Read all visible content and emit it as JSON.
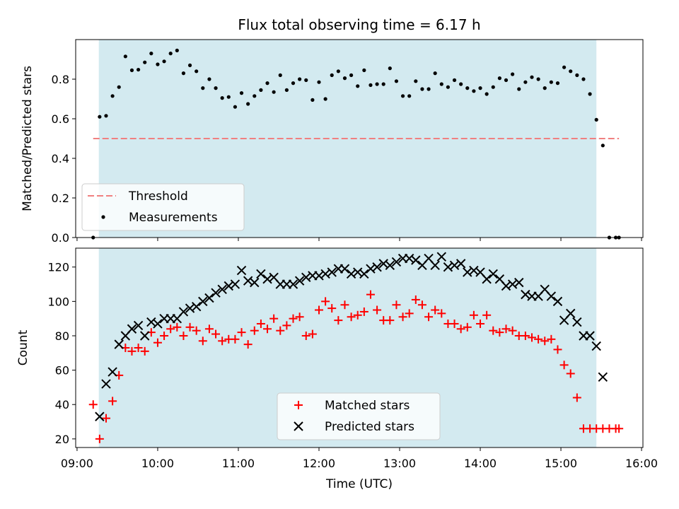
{
  "figure": {
    "title": "Flux total observing time = 6.17 h",
    "xlabel": "Time (UTC)",
    "x_tick_labels": [
      "09:00",
      "10:00",
      "11:00",
      "12:00",
      "13:00",
      "14:00",
      "15:00",
      "16:00"
    ],
    "x_ticks_hours": [
      9,
      10,
      11,
      12,
      13,
      14,
      15,
      16
    ],
    "xlim_hours": [
      8.983,
      16.017
    ],
    "observing_window_hours": [
      9.27,
      15.44
    ],
    "window_color": "#d3eaf0",
    "threshold_color": "#f08080",
    "matched_color": "#ff0000",
    "predicted_color": "#000000"
  },
  "chart_data": [
    {
      "type": "scatter",
      "ylabel": "Matched/Predicted stars",
      "ylim": [
        0,
        1.0
      ],
      "y_ticks": [
        0.0,
        0.2,
        0.4,
        0.6,
        0.8
      ],
      "y_tick_labels": [
        "0.0",
        "0.2",
        "0.4",
        "0.6",
        "0.8"
      ],
      "legend_position": "lower-left",
      "threshold": {
        "name": "Threshold",
        "y": 0.5,
        "x_range": [
          9.2,
          15.72
        ]
      },
      "series": [
        {
          "name": "Measurements",
          "points": [
            [
              9.2,
              0.0
            ],
            [
              9.28,
              0.61
            ],
            [
              9.36,
              0.615
            ],
            [
              9.44,
              0.715
            ],
            [
              9.52,
              0.76
            ],
            [
              9.6,
              0.915
            ],
            [
              9.68,
              0.845
            ],
            [
              9.76,
              0.848
            ],
            [
              9.84,
              0.885
            ],
            [
              9.92,
              0.93
            ],
            [
              10.0,
              0.875
            ],
            [
              10.08,
              0.89
            ],
            [
              10.16,
              0.93
            ],
            [
              10.24,
              0.945
            ],
            [
              10.32,
              0.83
            ],
            [
              10.4,
              0.87
            ],
            [
              10.48,
              0.84
            ],
            [
              10.56,
              0.755
            ],
            [
              10.64,
              0.8
            ],
            [
              10.72,
              0.755
            ],
            [
              10.8,
              0.705
            ],
            [
              10.88,
              0.71
            ],
            [
              10.96,
              0.66
            ],
            [
              11.04,
              0.73
            ],
            [
              11.12,
              0.675
            ],
            [
              11.2,
              0.715
            ],
            [
              11.28,
              0.745
            ],
            [
              11.36,
              0.78
            ],
            [
              11.44,
              0.735
            ],
            [
              11.52,
              0.82
            ],
            [
              11.6,
              0.745
            ],
            [
              11.68,
              0.78
            ],
            [
              11.76,
              0.8
            ],
            [
              11.84,
              0.795
            ],
            [
              11.92,
              0.695
            ],
            [
              12.0,
              0.785
            ],
            [
              12.08,
              0.7
            ],
            [
              12.16,
              0.82
            ],
            [
              12.24,
              0.84
            ],
            [
              12.32,
              0.805
            ],
            [
              12.4,
              0.82
            ],
            [
              12.48,
              0.765
            ],
            [
              12.56,
              0.845
            ],
            [
              12.64,
              0.77
            ],
            [
              12.72,
              0.775
            ],
            [
              12.8,
              0.775
            ],
            [
              12.88,
              0.855
            ],
            [
              12.96,
              0.79
            ],
            [
              13.04,
              0.715
            ],
            [
              13.12,
              0.715
            ],
            [
              13.2,
              0.79
            ],
            [
              13.28,
              0.75
            ],
            [
              13.36,
              0.75
            ],
            [
              13.44,
              0.83
            ],
            [
              13.52,
              0.775
            ],
            [
              13.6,
              0.76
            ],
            [
              13.68,
              0.795
            ],
            [
              13.76,
              0.775
            ],
            [
              13.84,
              0.755
            ],
            [
              13.92,
              0.74
            ],
            [
              14.0,
              0.755
            ],
            [
              14.08,
              0.725
            ],
            [
              14.16,
              0.76
            ],
            [
              14.24,
              0.805
            ],
            [
              14.32,
              0.795
            ],
            [
              14.4,
              0.825
            ],
            [
              14.48,
              0.75
            ],
            [
              14.56,
              0.785
            ],
            [
              14.64,
              0.81
            ],
            [
              14.72,
              0.8
            ],
            [
              14.8,
              0.755
            ],
            [
              14.88,
              0.785
            ],
            [
              14.96,
              0.78
            ],
            [
              15.04,
              0.86
            ],
            [
              15.12,
              0.84
            ],
            [
              15.2,
              0.82
            ],
            [
              15.28,
              0.8
            ],
            [
              15.36,
              0.725
            ],
            [
              15.44,
              0.595
            ],
            [
              15.52,
              0.465
            ],
            [
              15.6,
              0.0
            ],
            [
              15.68,
              0.0
            ],
            [
              15.72,
              0.0
            ]
          ]
        }
      ]
    },
    {
      "type": "scatter",
      "ylabel": "Count",
      "ylim": [
        15,
        131
      ],
      "y_ticks": [
        20,
        40,
        60,
        80,
        100,
        120
      ],
      "y_tick_labels": [
        "20",
        "40",
        "60",
        "80",
        "100",
        "120"
      ],
      "legend_position": "lower-center",
      "series": [
        {
          "name": "Matched stars",
          "marker": "plus",
          "points": [
            [
              9.2,
              40
            ],
            [
              9.28,
              20
            ],
            [
              9.36,
              32
            ],
            [
              9.44,
              42
            ],
            [
              9.52,
              57
            ],
            [
              9.6,
              73
            ],
            [
              9.68,
              71
            ],
            [
              9.76,
              73
            ],
            [
              9.84,
              71
            ],
            [
              9.92,
              82
            ],
            [
              10.0,
              76
            ],
            [
              10.08,
              80
            ],
            [
              10.16,
              84
            ],
            [
              10.24,
              85
            ],
            [
              10.32,
              80
            ],
            [
              10.4,
              85
            ],
            [
              10.48,
              83
            ],
            [
              10.56,
              77
            ],
            [
              10.64,
              84
            ],
            [
              10.72,
              81
            ],
            [
              10.8,
              77
            ],
            [
              10.88,
              78
            ],
            [
              10.96,
              78
            ],
            [
              11.04,
              82
            ],
            [
              11.12,
              75
            ],
            [
              11.2,
              83
            ],
            [
              11.28,
              87
            ],
            [
              11.36,
              84
            ],
            [
              11.44,
              90
            ],
            [
              11.52,
              83
            ],
            [
              11.6,
              86
            ],
            [
              11.68,
              90
            ],
            [
              11.76,
              91
            ],
            [
              11.84,
              80
            ],
            [
              11.92,
              81
            ],
            [
              12.0,
              95
            ],
            [
              12.08,
              100
            ],
            [
              12.16,
              96
            ],
            [
              12.24,
              89
            ],
            [
              12.32,
              98
            ],
            [
              12.4,
              91
            ],
            [
              12.48,
              92
            ],
            [
              12.56,
              94
            ],
            [
              12.64,
              104
            ],
            [
              12.72,
              95
            ],
            [
              12.8,
              89
            ],
            [
              12.88,
              89
            ],
            [
              12.96,
              98
            ],
            [
              13.04,
              91
            ],
            [
              13.12,
              93
            ],
            [
              13.2,
              101
            ],
            [
              13.28,
              98
            ],
            [
              13.36,
              91
            ],
            [
              13.44,
              95
            ],
            [
              13.52,
              93
            ],
            [
              13.6,
              87
            ],
            [
              13.68,
              87
            ],
            [
              13.76,
              84
            ],
            [
              13.84,
              85
            ],
            [
              13.92,
              92
            ],
            [
              14.0,
              87
            ],
            [
              14.08,
              92
            ],
            [
              14.16,
              83
            ],
            [
              14.24,
              82
            ],
            [
              14.32,
              84
            ],
            [
              14.4,
              83
            ],
            [
              14.48,
              80
            ],
            [
              14.56,
              80
            ],
            [
              14.64,
              79
            ],
            [
              14.72,
              78
            ],
            [
              14.8,
              77
            ],
            [
              14.88,
              78
            ],
            [
              14.96,
              72
            ],
            [
              15.04,
              63
            ],
            [
              15.12,
              58
            ],
            [
              15.2,
              44
            ],
            [
              15.28,
              26
            ],
            [
              15.36,
              26
            ],
            [
              15.44,
              26
            ],
            [
              15.52,
              26
            ],
            [
              15.6,
              26
            ],
            [
              15.68,
              26
            ],
            [
              15.72,
              26
            ]
          ]
        },
        {
          "name": "Predicted stars",
          "marker": "x",
          "points": [
            [
              9.28,
              33
            ],
            [
              9.36,
              52
            ],
            [
              9.44,
              59
            ],
            [
              9.52,
              75
            ],
            [
              9.6,
              80
            ],
            [
              9.68,
              84
            ],
            [
              9.76,
              86
            ],
            [
              9.84,
              80
            ],
            [
              9.92,
              88
            ],
            [
              10.0,
              87
            ],
            [
              10.08,
              90
            ],
            [
              10.16,
              90
            ],
            [
              10.24,
              90
            ],
            [
              10.32,
              94
            ],
            [
              10.4,
              96
            ],
            [
              10.48,
              97
            ],
            [
              10.56,
              100
            ],
            [
              10.64,
              102
            ],
            [
              10.72,
              105
            ],
            [
              10.8,
              107
            ],
            [
              10.88,
              109
            ],
            [
              10.96,
              110
            ],
            [
              11.04,
              118
            ],
            [
              11.12,
              112
            ],
            [
              11.2,
              111
            ],
            [
              11.28,
              116
            ],
            [
              11.36,
              113
            ],
            [
              11.44,
              114
            ],
            [
              11.52,
              110
            ],
            [
              11.6,
              110
            ],
            [
              11.68,
              110
            ],
            [
              11.76,
              112
            ],
            [
              11.84,
              114
            ],
            [
              11.92,
              115
            ],
            [
              12.0,
              115
            ],
            [
              12.08,
              116
            ],
            [
              12.16,
              117
            ],
            [
              12.24,
              119
            ],
            [
              12.32,
              119
            ],
            [
              12.4,
              116
            ],
            [
              12.48,
              117
            ],
            [
              12.56,
              116
            ],
            [
              12.64,
              119
            ],
            [
              12.72,
              120
            ],
            [
              12.8,
              122
            ],
            [
              12.88,
              121
            ],
            [
              12.96,
              123
            ],
            [
              13.04,
              125
            ],
            [
              13.12,
              125
            ],
            [
              13.2,
              124
            ],
            [
              13.28,
              121
            ],
            [
              13.36,
              125
            ],
            [
              13.44,
              121
            ],
            [
              13.52,
              126
            ],
            [
              13.6,
              120
            ],
            [
              13.68,
              121
            ],
            [
              13.76,
              122
            ],
            [
              13.84,
              117
            ],
            [
              13.92,
              118
            ],
            [
              14.0,
              117
            ],
            [
              14.08,
              113
            ],
            [
              14.16,
              116
            ],
            [
              14.24,
              113
            ],
            [
              14.32,
              109
            ],
            [
              14.4,
              110
            ],
            [
              14.48,
              111
            ],
            [
              14.56,
              104
            ],
            [
              14.64,
              103
            ],
            [
              14.72,
              103
            ],
            [
              14.8,
              107
            ],
            [
              14.88,
              103
            ],
            [
              14.96,
              100
            ],
            [
              15.04,
              89
            ],
            [
              15.12,
              93
            ],
            [
              15.2,
              88
            ],
            [
              15.28,
              80
            ],
            [
              15.36,
              80
            ],
            [
              15.44,
              74
            ],
            [
              15.52,
              56
            ]
          ]
        }
      ]
    }
  ]
}
